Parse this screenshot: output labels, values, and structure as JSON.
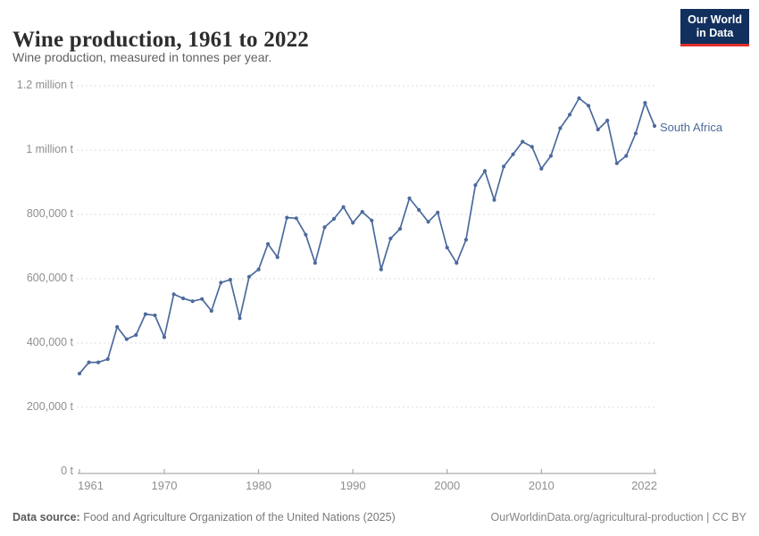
{
  "header": {
    "title": "Wine production, 1961 to 2022",
    "subtitle": "Wine production, measured in tonnes per year.",
    "logo": {
      "line1": "Our World",
      "line2": "in Data"
    }
  },
  "chart_data": {
    "type": "line",
    "title": "Wine production, 1961 to 2022",
    "entity": "South Africa",
    "unit": "tonnes per year",
    "color": "#4C6A9C",
    "grid": true,
    "legend_position": "right-of-line-end",
    "xlim": [
      1961,
      2022
    ],
    "ylim": [
      0,
      1200000
    ],
    "x": [
      1961,
      1962,
      1963,
      1964,
      1965,
      1966,
      1967,
      1968,
      1969,
      1970,
      1971,
      1972,
      1973,
      1974,
      1975,
      1976,
      1977,
      1978,
      1979,
      1980,
      1981,
      1982,
      1983,
      1984,
      1985,
      1986,
      1987,
      1988,
      1989,
      1990,
      1991,
      1992,
      1993,
      1994,
      1995,
      1996,
      1997,
      1998,
      1999,
      2000,
      2001,
      2002,
      2003,
      2004,
      2005,
      2006,
      2007,
      2008,
      2009,
      2010,
      2011,
      2012,
      2013,
      2014,
      2015,
      2016,
      2017,
      2018,
      2019,
      2020,
      2021,
      2022
    ],
    "values": [
      305000,
      340000,
      340000,
      350000,
      450000,
      412000,
      425000,
      490000,
      486000,
      418000,
      552000,
      539000,
      530000,
      537000,
      500000,
      588000,
      597000,
      477000,
      606000,
      629000,
      708000,
      667000,
      790000,
      788000,
      737000,
      649000,
      760000,
      786000,
      823000,
      774000,
      808000,
      781000,
      629000,
      725000,
      755000,
      850000,
      814000,
      777000,
      806000,
      697000,
      649000,
      721000,
      891000,
      935000,
      845000,
      949000,
      987000,
      1026000,
      1010000,
      942000,
      982000,
      1068000,
      1110000,
      1161000,
      1138000,
      1064000,
      1092000,
      959000,
      982000,
      1052000,
      1147000,
      1075000
    ],
    "y_ticks": [
      {
        "value": 0,
        "label": "0 t"
      },
      {
        "value": 200000,
        "label": "200,000 t"
      },
      {
        "value": 400000,
        "label": "400,000 t"
      },
      {
        "value": 600000,
        "label": "600,000 t"
      },
      {
        "value": 800000,
        "label": "800,000 t"
      },
      {
        "value": 1000000,
        "label": "1 million t"
      },
      {
        "value": 1200000,
        "label": "1.2 million t"
      }
    ],
    "x_ticks": [
      {
        "value": 1961,
        "label": "1961"
      },
      {
        "value": 1970,
        "label": "1970"
      },
      {
        "value": 1980,
        "label": "1980"
      },
      {
        "value": 1990,
        "label": "1990"
      },
      {
        "value": 2000,
        "label": "2000"
      },
      {
        "value": 2010,
        "label": "2010"
      },
      {
        "value": 2022,
        "label": "2022"
      }
    ]
  },
  "footer": {
    "source_label": "Data source:",
    "source_text": "Food and Agriculture Organization of the United Nations (2025)",
    "credit": "OurWorldinData.org/agricultural-production | CC BY"
  }
}
